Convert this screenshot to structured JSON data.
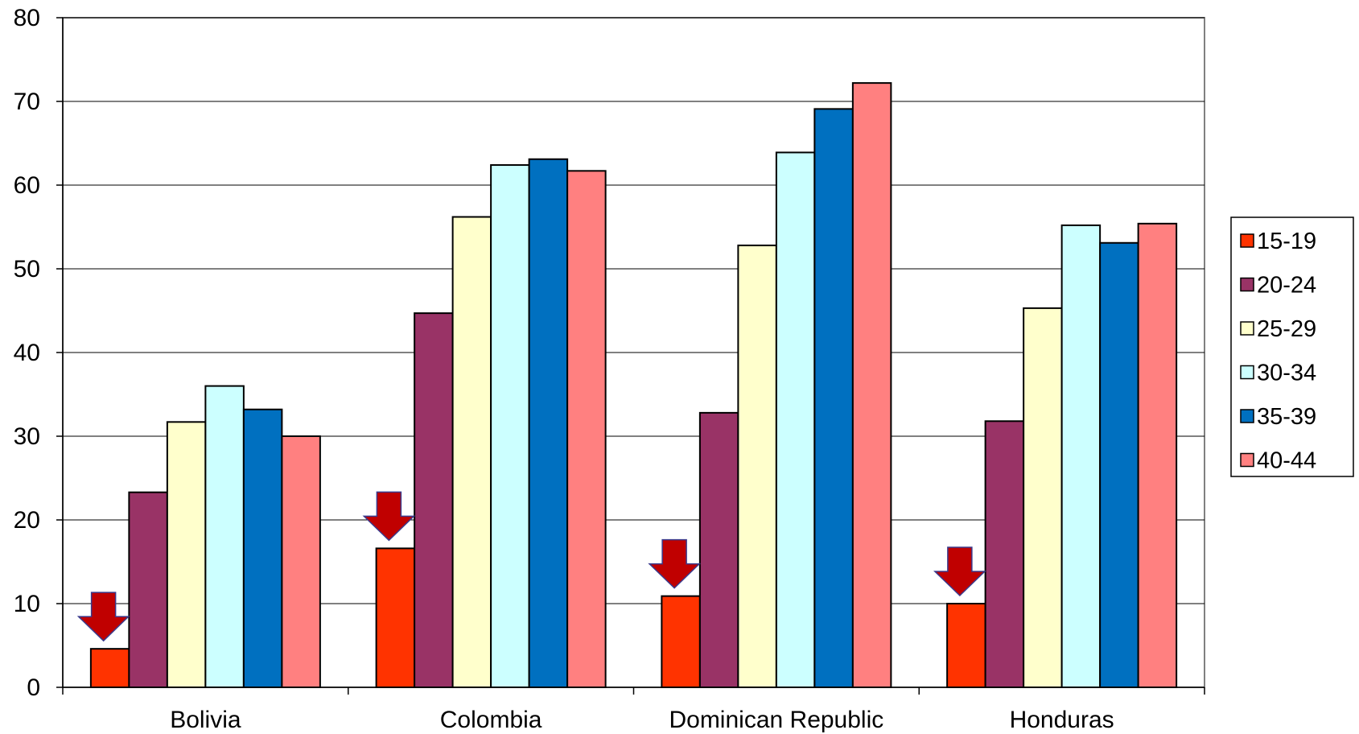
{
  "chart_data": {
    "type": "bar",
    "title": "",
    "xlabel": "",
    "ylabel": "",
    "ylim": [
      0,
      80
    ],
    "yticks": [
      "0",
      "10",
      "20",
      "30",
      "40",
      "50",
      "60",
      "70",
      "80"
    ],
    "grid": true,
    "legend_position": "right",
    "categories": [
      "Bolivia",
      "Colombia",
      "Dominican Republic",
      "Honduras"
    ],
    "series": [
      {
        "name": "15-19",
        "color": "#ff3300",
        "values": [
          4.6,
          16.6,
          10.9,
          10.0
        ]
      },
      {
        "name": "20-24",
        "color": "#993366",
        "values": [
          23.3,
          44.7,
          32.8,
          31.8
        ]
      },
      {
        "name": "25-29",
        "color": "#ffffcc",
        "values": [
          31.7,
          56.2,
          52.8,
          45.3
        ]
      },
      {
        "name": "30-34",
        "color": "#ccffff",
        "values": [
          36.0,
          62.4,
          63.9,
          55.2
        ]
      },
      {
        "name": "35-39",
        "color": "#0070c0",
        "values": [
          33.2,
          63.1,
          69.1,
          53.1
        ]
      },
      {
        "name": "40-44",
        "color": "#ff8080",
        "values": [
          30.0,
          61.7,
          72.2,
          55.4
        ]
      }
    ],
    "annotations": {
      "type": "down-arrow",
      "color": "#c00000",
      "series": "15-19",
      "categories": [
        "Bolivia",
        "Colombia",
        "Dominican Republic",
        "Honduras"
      ]
    }
  }
}
